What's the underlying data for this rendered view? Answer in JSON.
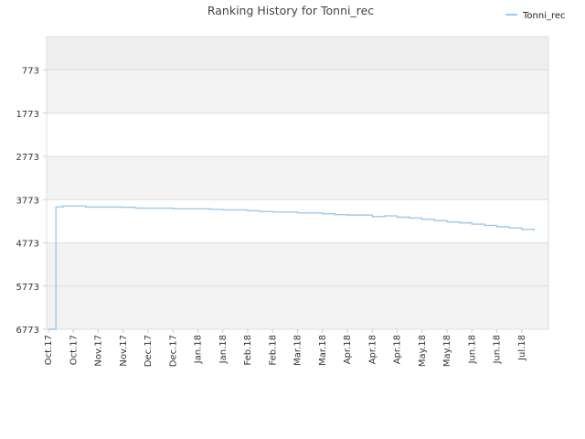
{
  "chart_data": {
    "type": "line",
    "title": "Ranking History for Tonni_rec",
    "xlabel": "",
    "ylabel": "",
    "y_inverted": true,
    "ylim": [
      6773,
      0
    ],
    "y_ticks": [
      773,
      1773,
      2773,
      3773,
      4773,
      5773,
      6773
    ],
    "x_ticks": [
      "Oct.17",
      "Oct.17",
      "Nov.17",
      "Nov.17",
      "Dec.17",
      "Dec.17",
      "Jan.18",
      "Jan.18",
      "Feb.18",
      "Feb.18",
      "Mar.18",
      "Mar.18",
      "Apr.18",
      "Apr.18",
      "Apr.18",
      "May.18",
      "May.18",
      "Jun.18",
      "Jun.18",
      "Jul.18"
    ],
    "grid": true,
    "legend_position": "top-right",
    "series": [
      {
        "name": "Tonni_rec",
        "color": "#9ec9ee",
        "x": [
          0,
          0.3,
          0.6,
          1,
          1.5,
          3,
          3.5,
          5,
          6.5,
          7,
          8,
          8.5,
          9,
          10,
          11,
          11.5,
          12,
          13,
          13.5,
          14,
          14.5,
          15,
          15.5,
          16,
          16.5,
          17,
          17.5,
          18,
          18.5,
          19,
          19.5
        ],
        "values": [
          6773,
          3940,
          3920,
          3920,
          3945,
          3950,
          3970,
          3985,
          4000,
          4010,
          4030,
          4050,
          4060,
          4080,
          4100,
          4120,
          4130,
          4165,
          4150,
          4180,
          4200,
          4230,
          4260,
          4290,
          4310,
          4340,
          4370,
          4400,
          4430,
          4460,
          4490
        ]
      }
    ]
  }
}
